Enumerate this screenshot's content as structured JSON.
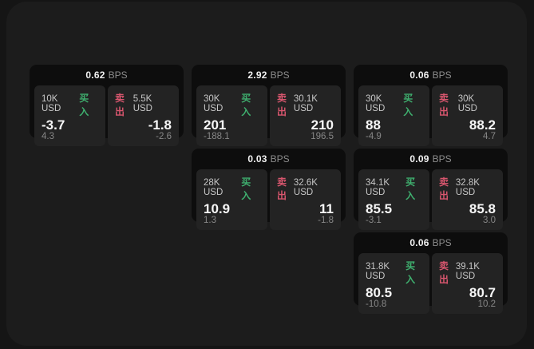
{
  "labels": {
    "buy": "买入",
    "sell": "卖出",
    "bps_suffix": "BPS"
  },
  "colors": {
    "page_bg": "#151515",
    "window_bg": "#1c1c1c",
    "card_bg": "#0d0d0d",
    "panel_bg": "#232323",
    "buy_green": "#3fb06f",
    "sell_red": "#d8566e",
    "value_text": "#f7f7f7",
    "muted_text": "#878787"
  },
  "cards": [
    {
      "bps": "0.62",
      "buy": {
        "amount": "10K USD",
        "value": "-3.7",
        "sub": "4.3"
      },
      "sell": {
        "amount": "5.5K USD",
        "value": "-1.8",
        "sub": "-2.6"
      }
    },
    {
      "bps": "2.92",
      "buy": {
        "amount": "30K USD",
        "value": "201",
        "sub": "-188.1"
      },
      "sell": {
        "amount": "30.1K USD",
        "value": "210",
        "sub": "196.5"
      }
    },
    {
      "bps": "0.06",
      "buy": {
        "amount": "30K USD",
        "value": "88",
        "sub": "-4.9"
      },
      "sell": {
        "amount": "30K USD",
        "value": "88.2",
        "sub": "4.7"
      }
    },
    {
      "bps": "0.03",
      "buy": {
        "amount": "28K USD",
        "value": "10.9",
        "sub": "1.3"
      },
      "sell": {
        "amount": "32.6K USD",
        "value": "11",
        "sub": "-1.8"
      }
    },
    {
      "bps": "0.09",
      "buy": {
        "amount": "34.1K USD",
        "value": "85.5",
        "sub": "-3.1"
      },
      "sell": {
        "amount": "32.8K USD",
        "value": "85.8",
        "sub": "3.0"
      }
    },
    {
      "bps": "0.06",
      "buy": {
        "amount": "31.8K USD",
        "value": "80.5",
        "sub": "-10.8"
      },
      "sell": {
        "amount": "39.1K USD",
        "value": "80.7",
        "sub": "10.2"
      }
    }
  ]
}
